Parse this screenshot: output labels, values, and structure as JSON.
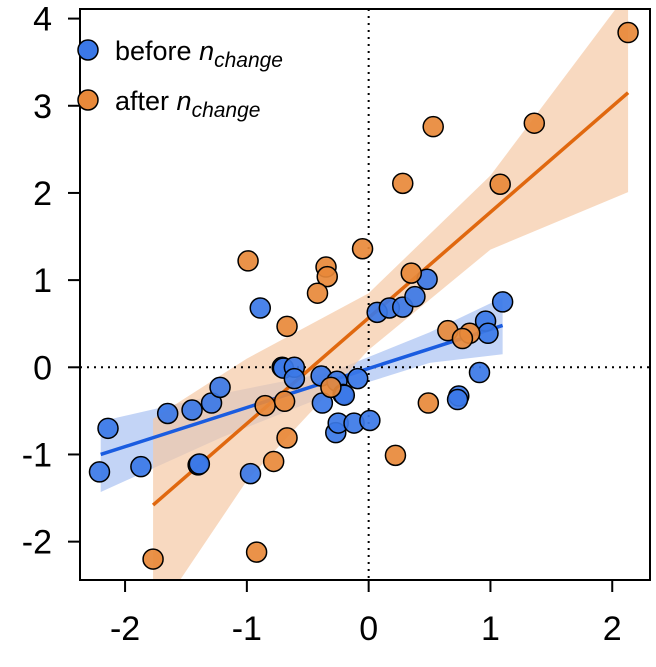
{
  "chart_data": {
    "type": "scatter",
    "title": "",
    "xlabel": "",
    "ylabel": "",
    "xlim": [
      -2.37,
      2.31
    ],
    "ylim": [
      -2.44,
      4.11
    ],
    "x_ticks": [
      -2,
      -1,
      0,
      1,
      2
    ],
    "y_ticks": [
      -2,
      -1,
      0,
      1,
      2,
      3,
      4
    ],
    "reference_lines": {
      "x": 0,
      "y": 0,
      "style": "dotted"
    },
    "grid": false,
    "legend": {
      "position": "top-left",
      "entries": [
        {
          "main": "before ",
          "italic": "n",
          "sub": "change"
        },
        {
          "main": "after ",
          "italic": "n",
          "sub": "change"
        }
      ]
    },
    "series": [
      {
        "name": "before n_change",
        "color": "#3b78e7",
        "line_color": "#1a5ce0",
        "band_color": "#a9c2f2",
        "points": [
          [
            -2.21,
            -1.2
          ],
          [
            -2.14,
            -0.7
          ],
          [
            -1.87,
            -1.14
          ],
          [
            -1.65,
            -0.53
          ],
          [
            -1.45,
            -0.49
          ],
          [
            -1.4,
            -1.12
          ],
          [
            -1.39,
            -1.11
          ],
          [
            -1.29,
            -0.41
          ],
          [
            -1.22,
            -0.23
          ],
          [
            -0.89,
            0.68
          ],
          [
            -0.97,
            -1.22
          ],
          [
            -0.71,
            0.0
          ],
          [
            -0.7,
            -0.01
          ],
          [
            -0.61,
            0.0
          ],
          [
            -0.61,
            -0.13
          ],
          [
            -0.39,
            -0.1
          ],
          [
            -0.38,
            -0.41
          ],
          [
            -0.26,
            -0.16
          ],
          [
            -0.21,
            -0.31
          ],
          [
            -0.2,
            -0.32
          ],
          [
            -0.09,
            -0.13
          ],
          [
            -0.27,
            -0.75
          ],
          [
            -0.25,
            -0.64
          ],
          [
            -0.12,
            -0.64
          ],
          [
            0.01,
            -0.61
          ],
          [
            0.07,
            0.63
          ],
          [
            0.17,
            0.68
          ],
          [
            0.28,
            0.69
          ],
          [
            0.38,
            0.81
          ],
          [
            0.48,
            1.01
          ],
          [
            1.1,
            0.75
          ],
          [
            0.96,
            0.53
          ],
          [
            0.98,
            0.39
          ],
          [
            0.91,
            -0.06
          ],
          [
            0.74,
            -0.33
          ],
          [
            0.73,
            -0.37
          ]
        ],
        "fit": {
          "x": [
            -2.2,
            1.1
          ],
          "y": [
            -1.0,
            0.48
          ]
        },
        "ci": {
          "x": [
            -2.2,
            -1.2,
            -0.3,
            0.5,
            1.1
          ],
          "lo": [
            -1.43,
            -0.8,
            -0.3,
            0.05,
            0.15
          ],
          "hi": [
            -0.62,
            -0.3,
            -0.05,
            0.4,
            0.8
          ]
        }
      },
      {
        "name": "after n_change",
        "color": "#e8893a",
        "line_color": "#e0680f",
        "band_color": "#f5c9a5",
        "points": [
          [
            -0.99,
            1.22
          ],
          [
            -0.35,
            1.15
          ],
          [
            -0.34,
            1.04
          ],
          [
            -0.42,
            0.85
          ],
          [
            -0.67,
            0.47
          ],
          [
            -0.31,
            -0.23
          ],
          [
            -0.85,
            -0.44
          ],
          [
            -0.69,
            -0.39
          ],
          [
            -0.67,
            -0.81
          ],
          [
            -0.78,
            -1.08
          ],
          [
            -1.77,
            -2.2
          ],
          [
            -0.92,
            -2.12
          ],
          [
            -0.05,
            1.36
          ],
          [
            2.13,
            3.84
          ],
          [
            1.36,
            2.8
          ],
          [
            0.53,
            2.76
          ],
          [
            0.28,
            2.11
          ],
          [
            1.08,
            2.1
          ],
          [
            0.35,
            1.08
          ],
          [
            0.65,
            0.42
          ],
          [
            0.83,
            0.39
          ],
          [
            0.77,
            0.33
          ],
          [
            0.49,
            -0.41
          ],
          [
            0.22,
            -1.01
          ]
        ],
        "fit": {
          "x": [
            -1.77,
            2.13
          ],
          "y": [
            -1.58,
            3.15
          ]
        },
        "ci": {
          "x": [
            -1.77,
            -1.0,
            0.0,
            1.0,
            2.13
          ],
          "lo": [
            -2.9,
            -1.3,
            0.2,
            1.35,
            2.01
          ],
          "hi": [
            -0.59,
            0.1,
            0.85,
            2.2,
            4.3
          ]
        }
      }
    ]
  }
}
